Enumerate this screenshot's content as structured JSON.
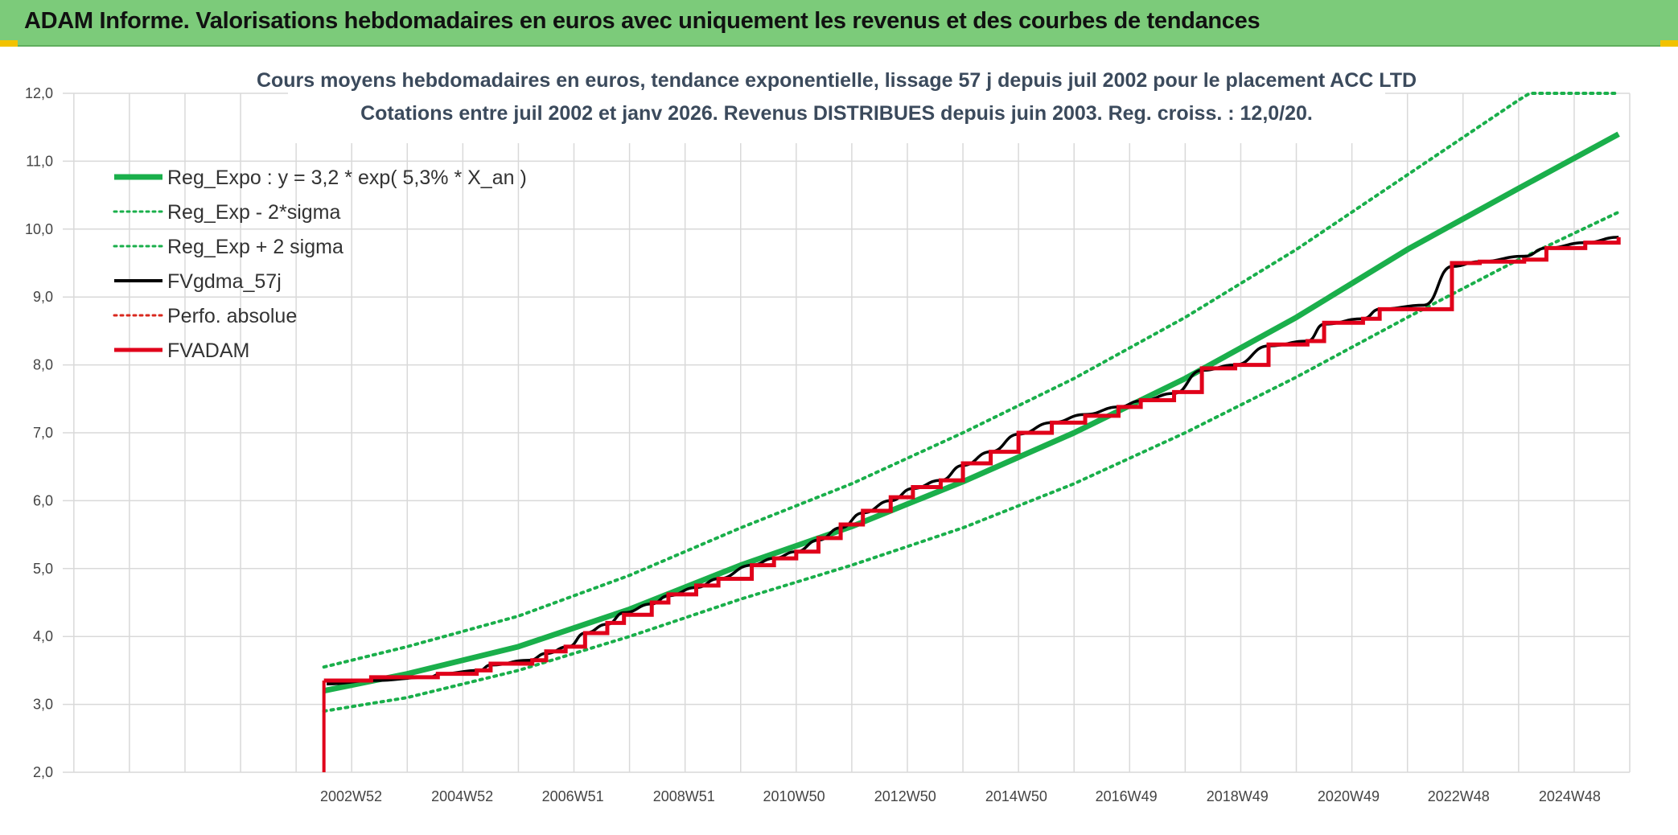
{
  "header": {
    "title": "ADAM Informe. Valorisations hebdomadaires en euros avec uniquement les revenus et des courbes de tendances",
    "background": "#7ccb7a"
  },
  "chart_data": {
    "type": "line",
    "title": "Cours moyens hebdomadaires en euros, tendance exponentielle, lissage 57 j depuis juil 2002 pour le placement ACC LTD",
    "subtitle": "Cotations entre juil 2002 et janv 2026. Revenus DISTRIBUES depuis juin 2003. Reg. croiss. : 12,0/20.",
    "xlabel": "",
    "ylabel": "",
    "ylim": [
      2.0,
      12.0
    ],
    "xlim": [
      1997.8,
      2026.0
    ],
    "y_ticks": [
      "2,0",
      "3,0",
      "4,0",
      "5,0",
      "6,0",
      "7,0",
      "8,0",
      "9,0",
      "10,0",
      "11,0",
      "12,0"
    ],
    "x_ticks": [
      {
        "label": "2002W52",
        "x": 2002.99
      },
      {
        "label": "2004W52",
        "x": 2004.99
      },
      {
        "label": "2006W51",
        "x": 2006.98
      },
      {
        "label": "2008W51",
        "x": 2008.98
      },
      {
        "label": "2010W50",
        "x": 2010.96
      },
      {
        "label": "2012W50",
        "x": 2012.96
      },
      {
        "label": "2014W50",
        "x": 2014.96
      },
      {
        "label": "2016W49",
        "x": 2016.94
      },
      {
        "label": "2018W49",
        "x": 2018.94
      },
      {
        "label": "2020W49",
        "x": 2020.94
      },
      {
        "label": "2022W48",
        "x": 2022.92
      },
      {
        "label": "2024W48",
        "x": 2024.92
      }
    ],
    "grid": true,
    "legend_position": "top-left",
    "series": [
      {
        "name": "Reg_Expo : y = 3,2 * exp( 5,3% *  X_an )",
        "color": "#1aaf4b",
        "style": "solid-thick",
        "x": [
          2002.5,
          2004,
          2006,
          2008,
          2010,
          2012,
          2014,
          2016,
          2018,
          2020,
          2022,
          2024,
          2025.8
        ],
        "y": [
          3.2,
          3.45,
          3.85,
          4.4,
          5.05,
          5.62,
          6.28,
          7.0,
          7.8,
          8.7,
          9.7,
          10.6,
          11.4
        ]
      },
      {
        "name": "Reg_Exp - 2*sigma",
        "color": "#1aaf4b",
        "style": "dotted",
        "x": [
          2002.5,
          2004,
          2006,
          2008,
          2010,
          2012,
          2014,
          2016,
          2018,
          2020,
          2022,
          2024,
          2025.8
        ],
        "y": [
          2.9,
          3.1,
          3.5,
          4.0,
          4.55,
          5.05,
          5.6,
          6.25,
          7.0,
          7.82,
          8.7,
          9.55,
          10.25
        ]
      },
      {
        "name": "Reg_Exp + 2 sigma",
        "color": "#1aaf4b",
        "style": "dotted",
        "x": [
          2002.5,
          2004,
          2006,
          2008,
          2010,
          2012,
          2014,
          2016,
          2018,
          2020,
          2022,
          2024,
          2024.2,
          2025.8
        ],
        "y": [
          3.55,
          3.85,
          4.3,
          4.9,
          5.6,
          6.25,
          7.0,
          7.8,
          8.7,
          9.7,
          10.8,
          11.9,
          12.0,
          12.0
        ]
      },
      {
        "name": "FVgdma_57j",
        "color": "#000000",
        "style": "solid",
        "x": [
          2002.55,
          2003.4,
          2004.4,
          2004.6,
          2005.3,
          2005.5,
          2006.2,
          2006.5,
          2006.9,
          2007.2,
          2007.6,
          2007.9,
          2008.4,
          2008.7,
          2009.2,
          2009.6,
          2010.2,
          2010.6,
          2011.0,
          2011.4,
          2011.8,
          2012.2,
          2012.7,
          2013.1,
          2013.6,
          2014.0,
          2014.5,
          2015.0,
          2015.6,
          2016.2,
          2016.8,
          2017.2,
          2017.8,
          2018.3,
          2018.9,
          2019.5,
          2020.2,
          2020.5,
          2021.2,
          2021.5,
          2022.3,
          2022.8,
          2023.3,
          2024.1,
          2024.5,
          2025.2,
          2025.8
        ],
        "y": [
          3.3,
          3.35,
          3.4,
          3.45,
          3.5,
          3.58,
          3.65,
          3.75,
          3.85,
          4.05,
          4.18,
          4.35,
          4.48,
          4.6,
          4.72,
          4.85,
          5.05,
          5.15,
          5.25,
          5.42,
          5.6,
          5.82,
          6.0,
          6.18,
          6.3,
          6.52,
          6.72,
          6.98,
          7.15,
          7.27,
          7.38,
          7.47,
          7.58,
          7.92,
          8.0,
          8.28,
          8.35,
          8.6,
          8.68,
          8.82,
          8.88,
          9.45,
          9.52,
          9.6,
          9.72,
          9.8,
          9.88
        ]
      },
      {
        "name": "Perfo. absolue",
        "color": "#d9281e",
        "style": "dotted",
        "x": [],
        "y": []
      },
      {
        "name": "FVADAM",
        "color": "#e0001a",
        "style": "step",
        "x": [
          2002.5,
          2003.35,
          2004.35,
          2004.55,
          2005.25,
          2005.5,
          2006.25,
          2006.5,
          2006.85,
          2007.2,
          2007.6,
          2007.9,
          2008.4,
          2008.7,
          2009.2,
          2009.6,
          2010.2,
          2010.6,
          2011.0,
          2011.4,
          2011.8,
          2012.2,
          2012.7,
          2013.1,
          2013.6,
          2014.0,
          2014.5,
          2015.0,
          2015.6,
          2016.2,
          2016.8,
          2017.2,
          2017.8,
          2018.3,
          2018.9,
          2019.5,
          2020.2,
          2020.5,
          2021.2,
          2021.5,
          2022.3,
          2022.8,
          2023.3,
          2024.1,
          2024.5,
          2025.2,
          2025.8
        ],
        "y": [
          3.35,
          3.4,
          3.4,
          3.45,
          3.5,
          3.6,
          3.65,
          3.78,
          3.85,
          4.05,
          4.2,
          4.32,
          4.5,
          4.62,
          4.75,
          4.85,
          5.05,
          5.15,
          5.25,
          5.45,
          5.65,
          5.85,
          6.05,
          6.2,
          6.3,
          6.55,
          6.72,
          7.0,
          7.15,
          7.25,
          7.38,
          7.48,
          7.6,
          7.95,
          8.0,
          8.3,
          8.35,
          8.62,
          8.68,
          8.82,
          8.82,
          9.5,
          9.52,
          9.55,
          9.72,
          9.8,
          9.88
        ],
        "drop_line": {
          "x": 2002.5,
          "from": 2.0,
          "to": 3.35
        }
      }
    ]
  }
}
